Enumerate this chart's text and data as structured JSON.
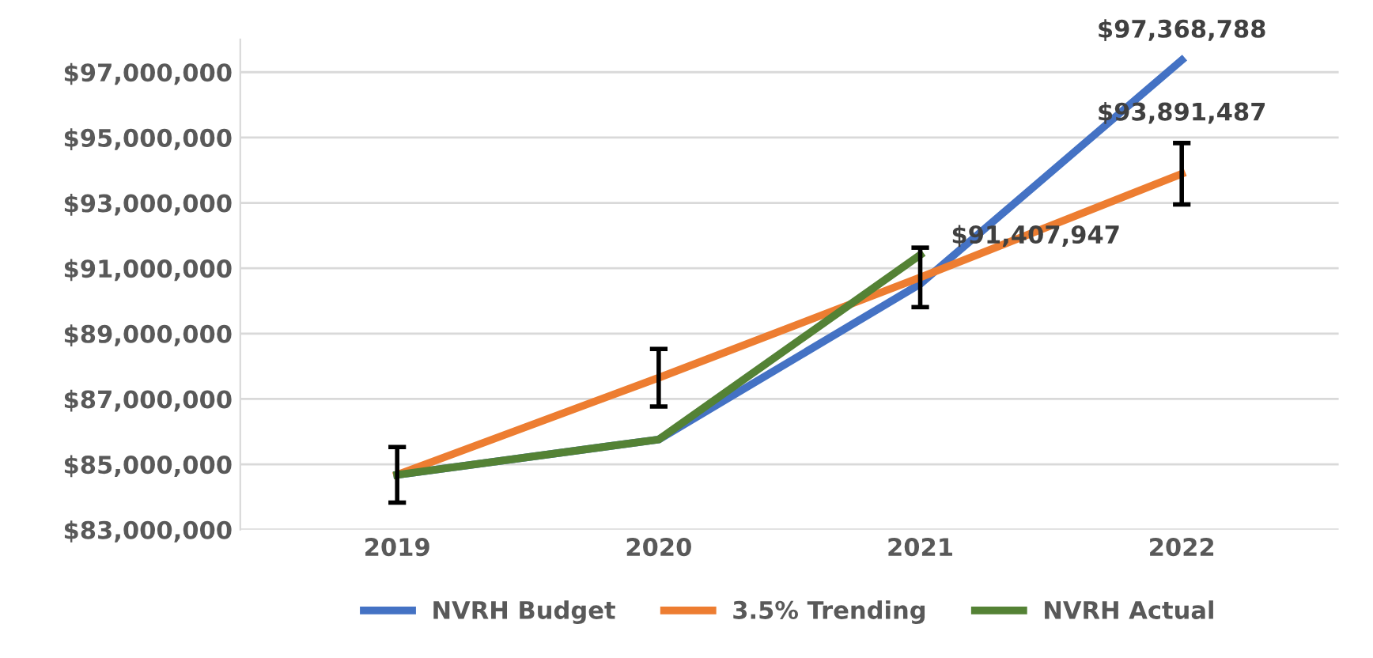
{
  "chart_data": {
    "type": "line",
    "categories": [
      "2019",
      "2020",
      "2021",
      "2022"
    ],
    "series": [
      {
        "name": "NVRH Budget",
        "color": "#4472c4",
        "values": [
          84680000,
          85760000,
          90520000,
          97368788
        ],
        "value_labels": [
          null,
          null,
          null,
          "$97,368,788"
        ]
      },
      {
        "name": "3.5% Trending",
        "color": "#ed7d31",
        "values": [
          84680000,
          87650000,
          90720000,
          93891487
        ],
        "errors": [
          850000,
          880000,
          910000,
          940000
        ],
        "value_labels": [
          null,
          null,
          null,
          "$93,891,487"
        ]
      },
      {
        "name": "NVRH Actual",
        "color": "#548235",
        "values": [
          84680000,
          85760000,
          91407947,
          null
        ],
        "value_labels": [
          null,
          null,
          "$91,407,947",
          null
        ]
      }
    ],
    "ylim": [
      83000000,
      98000000
    ],
    "yticks": [
      {
        "value": 83000000,
        "label": "$83,000,000"
      },
      {
        "value": 85000000,
        "label": "$85,000,000"
      },
      {
        "value": 87000000,
        "label": "$87,000,000"
      },
      {
        "value": 89000000,
        "label": "$89,000,000"
      },
      {
        "value": 91000000,
        "label": "$91,000,000"
      },
      {
        "value": 93000000,
        "label": "$93,000,000"
      },
      {
        "value": 95000000,
        "label": "$95,000,000"
      },
      {
        "value": 97000000,
        "label": "$97,000,000"
      }
    ],
    "grid": "y",
    "legend": "bottom",
    "line_style": "solid"
  }
}
